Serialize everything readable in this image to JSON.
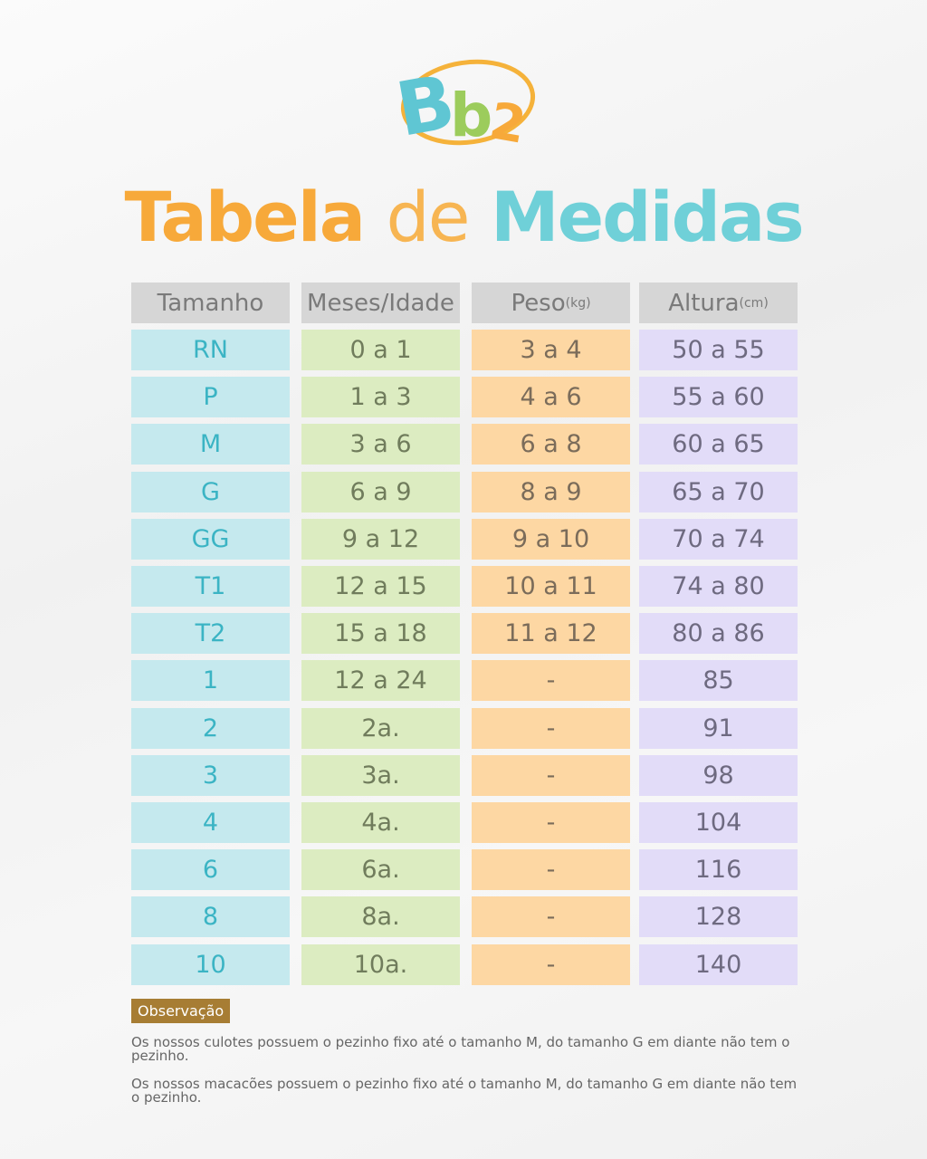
{
  "logo": {
    "text": "Bb2",
    "colors": {
      "B": "#5fc6d3",
      "b": "#9ccc5c",
      "2": "#f7a93a",
      "ring": "#f5b23a"
    }
  },
  "title": {
    "part1": "Tabela",
    "part2": "de",
    "part3": "Medidas"
  },
  "headers": [
    {
      "label": "Tamanho",
      "unit": ""
    },
    {
      "label": "Meses/Idade",
      "unit": ""
    },
    {
      "label": "Peso",
      "unit": "(kg)"
    },
    {
      "label": "Altura",
      "unit": "(cm)"
    }
  ],
  "rows": [
    [
      "RN",
      "0 a 1",
      "3 a 4",
      "50 a 55"
    ],
    [
      "P",
      "1 a 3",
      "4 a 6",
      "55 a 60"
    ],
    [
      "M",
      "3 a 6",
      "6 a 8",
      "60 a 65"
    ],
    [
      "G",
      "6 a 9",
      "8 a 9",
      "65 a 70"
    ],
    [
      "GG",
      "9 a 12",
      "9 a 10",
      "70 a 74"
    ],
    [
      "T1",
      "12 a 15",
      "10 a 11",
      "74 a 80"
    ],
    [
      "T2",
      "15 a 18",
      "11 a 12",
      "80 a 86"
    ],
    [
      "1",
      "12 a 24",
      "-",
      "85"
    ],
    [
      "2",
      "2a.",
      "-",
      "91"
    ],
    [
      "3",
      "3a.",
      "-",
      "98"
    ],
    [
      "4",
      "4a.",
      "-",
      "104"
    ],
    [
      "6",
      "6a.",
      "-",
      "116"
    ],
    [
      "8",
      "8a.",
      "-",
      "128"
    ],
    [
      "10",
      "10a.",
      "-",
      "140"
    ]
  ],
  "observacao": {
    "label": "Observação",
    "notes": [
      "Os nossos culotes possuem o pezinho fixo até o tamanho M, do tamanho G em diante não tem o pezinho.",
      "Os nossos macacões possuem o pezinho fixo até o tamanho M, do tamanho G em diante não tem o pezinho."
    ]
  }
}
